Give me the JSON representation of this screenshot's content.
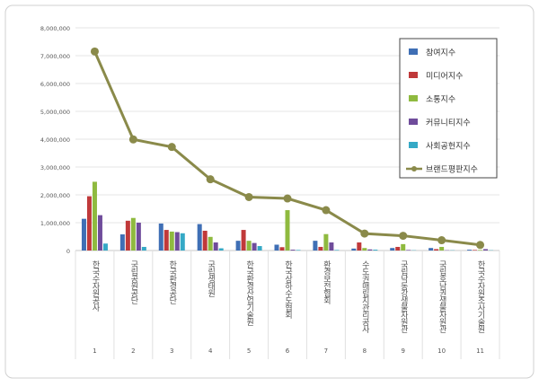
{
  "chart_data": {
    "type": "bar",
    "categories": [
      "한국수자원공사",
      "국립공원공단",
      "한국환경공단",
      "국립생태원",
      "한국환경산업기술원",
      "한국상하수도협회",
      "환경보전협회",
      "수도권매립지관리공사",
      "국립낙동강생물자원관",
      "국립호남권생물자원관",
      "한국수자원조사기술원"
    ],
    "ranks": [
      "1",
      "2",
      "3",
      "4",
      "5",
      "6",
      "7",
      "8",
      "9",
      "10",
      "11"
    ],
    "ylim": [
      0,
      8000000
    ],
    "yticks": [
      "0",
      "1,000,000",
      "2,000,000",
      "3,000,000",
      "4,000,000",
      "5,000,000",
      "6,000,000",
      "7,000,000",
      "8,000,000"
    ],
    "grid": true,
    "legend_position": "top-right",
    "series": [
      {
        "name": "참여지수",
        "type": "bar",
        "color": "#3f6fb5",
        "values": [
          1140000,
          580000,
          970000,
          950000,
          350000,
          210000,
          350000,
          70000,
          90000,
          90000,
          30000
        ]
      },
      {
        "name": "미디어지수",
        "type": "bar",
        "color": "#c0393a",
        "values": [
          1950000,
          1070000,
          740000,
          710000,
          740000,
          120000,
          130000,
          290000,
          130000,
          50000,
          20000
        ]
      },
      {
        "name": "소통지수",
        "type": "bar",
        "color": "#8fba3f",
        "values": [
          2470000,
          1170000,
          680000,
          490000,
          350000,
          1450000,
          590000,
          90000,
          230000,
          130000,
          20000
        ]
      },
      {
        "name": "커뮤니티지수",
        "type": "bar",
        "color": "#6f4c9b",
        "values": [
          1270000,
          1000000,
          660000,
          290000,
          270000,
          30000,
          290000,
          40000,
          20000,
          10000,
          50000
        ]
      },
      {
        "name": "사회공헌지수",
        "type": "bar",
        "color": "#35a9c6",
        "values": [
          250000,
          130000,
          620000,
          80000,
          160000,
          20000,
          20000,
          30000,
          10000,
          10000,
          10000
        ]
      },
      {
        "name": "브랜드평판지수",
        "type": "line",
        "color": "#8a8a4a",
        "values": [
          7150000,
          3990000,
          3720000,
          2560000,
          1920000,
          1870000,
          1450000,
          610000,
          530000,
          370000,
          200000
        ]
      }
    ]
  }
}
